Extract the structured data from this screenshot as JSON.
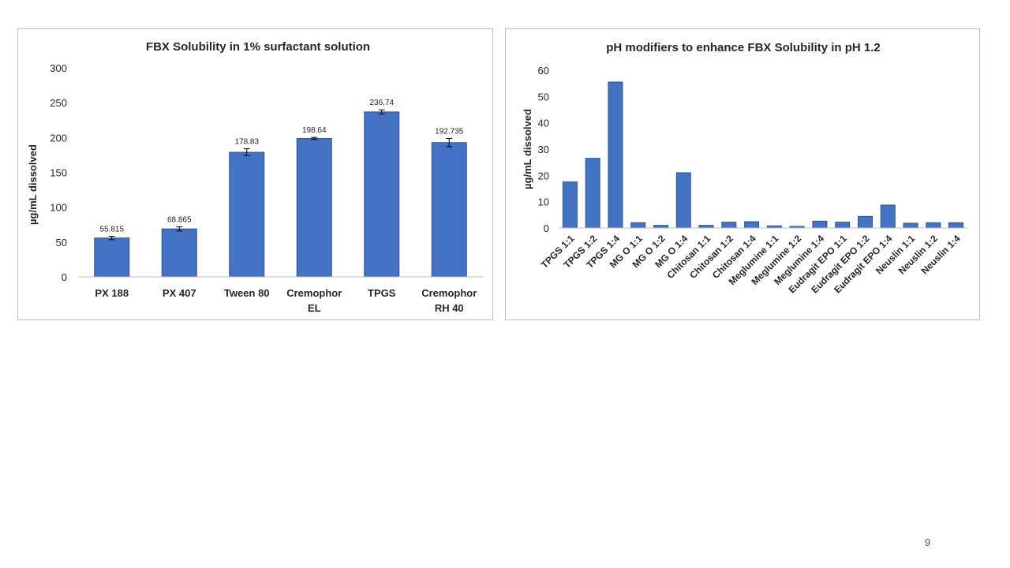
{
  "page": {
    "number": "9"
  },
  "chart_data": [
    {
      "type": "bar",
      "title": "FBX Solubility in 1% surfactant solution",
      "xlabel": "",
      "ylabel": "µg/mL dissolved",
      "ylim": [
        0,
        300
      ],
      "yticks": [
        0,
        50,
        100,
        150,
        200,
        250,
        300
      ],
      "categories": [
        [
          "PX 188"
        ],
        [
          "PX 407"
        ],
        [
          "Tween 80"
        ],
        [
          "Cremophor",
          "EL"
        ],
        [
          "TPGS"
        ],
        [
          "Cremophor",
          "RH 40"
        ]
      ],
      "values": [
        55.815,
        68.865,
        178.83,
        198.64,
        236.74,
        192.735
      ],
      "data_labels": [
        "55.815",
        "68.865",
        "178.83",
        "198.64",
        "236.74",
        "192.735"
      ],
      "error_bars": [
        2.5,
        3.0,
        5.0,
        1.5,
        3.0,
        6.0
      ],
      "grid": false,
      "bar_color": "#4472C4"
    },
    {
      "type": "bar",
      "title": "pH modifiers to enhance FBX Solubility in pH 1.2",
      "xlabel": "",
      "ylabel": "µg/mL dissolved",
      "ylim": [
        0,
        60
      ],
      "yticks": [
        0,
        10,
        20,
        30,
        40,
        50,
        60
      ],
      "categories": [
        "TPGS 1:1",
        "TPGS 1:2",
        "TPGS 1:4",
        "MG O  1:1",
        "MG O 1:2",
        "MG O 1:4",
        "Chitosan  1:1",
        "Chitosan 1:2",
        "Chitosan 1:4",
        "Meglumine  1:1",
        "Meglumine 1:2",
        "Meglumine 1:4",
        "Eudragit EPO  1:1",
        "Eudragit EPO 1:2",
        "Eudragit EPO 1:4",
        "Neuslin  1:1",
        "Neuslin 1:2",
        "Neuslin 1:4"
      ],
      "values": [
        17.5,
        26.5,
        55.5,
        2.0,
        1.0,
        21.0,
        1.0,
        2.2,
        2.4,
        0.8,
        0.6,
        2.6,
        2.2,
        4.4,
        8.7,
        1.8,
        2.0,
        2.0
      ],
      "grid": false,
      "bar_color": "#4472C4"
    }
  ]
}
